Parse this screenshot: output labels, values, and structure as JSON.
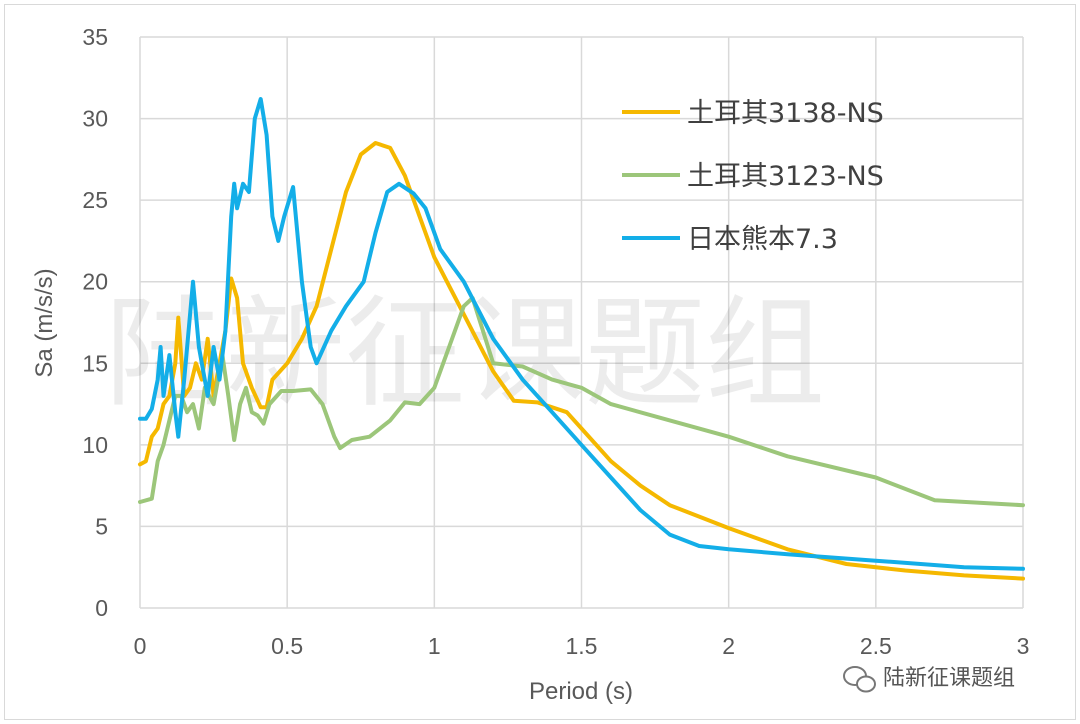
{
  "chart_data": {
    "type": "line",
    "title": "",
    "xlabel": "Period (s)",
    "ylabel": "Sa (m/s/s)",
    "xlim": [
      0,
      3
    ],
    "ylim": [
      0,
      35
    ],
    "xticks": [
      "0",
      "0.5",
      "1",
      "1.5",
      "2",
      "2.5",
      "3"
    ],
    "yticks": [
      "0",
      "5",
      "10",
      "15",
      "20",
      "25",
      "30",
      "35"
    ],
    "grid": true,
    "legend_position": "top-right",
    "series": [
      {
        "name": "土耳其3138-NS",
        "color": "#f5b800",
        "x": [
          0,
          0.02,
          0.04,
          0.06,
          0.08,
          0.1,
          0.12,
          0.13,
          0.15,
          0.17,
          0.19,
          0.21,
          0.23,
          0.25,
          0.27,
          0.29,
          0.31,
          0.33,
          0.35,
          0.38,
          0.41,
          0.43,
          0.45,
          0.5,
          0.55,
          0.6,
          0.65,
          0.7,
          0.75,
          0.8,
          0.85,
          0.9,
          0.95,
          1.0,
          1.1,
          1.2,
          1.27,
          1.35,
          1.45,
          1.5,
          1.6,
          1.7,
          1.8,
          1.9,
          2.0,
          2.2,
          2.4,
          2.6,
          2.8,
          3.0
        ],
        "y": [
          8.8,
          9,
          10.5,
          11,
          12.5,
          13,
          15,
          17.8,
          13,
          13.5,
          15,
          14,
          16.5,
          13,
          15,
          17,
          20.2,
          19,
          15,
          13.5,
          12.3,
          12.3,
          14,
          15,
          16.5,
          18.5,
          22,
          25.5,
          27.8,
          28.5,
          28.2,
          26.5,
          24,
          21.5,
          18,
          14.5,
          12.7,
          12.6,
          12,
          11,
          9,
          7.5,
          6.3,
          5.6,
          4.9,
          3.6,
          2.7,
          2.3,
          2.0,
          1.8
        ]
      },
      {
        "name": "土耳其3123-NS",
        "color": "#9cc67a",
        "x": [
          0,
          0.04,
          0.06,
          0.08,
          0.1,
          0.12,
          0.14,
          0.16,
          0.18,
          0.2,
          0.22,
          0.25,
          0.28,
          0.3,
          0.32,
          0.34,
          0.36,
          0.38,
          0.4,
          0.42,
          0.44,
          0.48,
          0.52,
          0.58,
          0.62,
          0.66,
          0.68,
          0.72,
          0.78,
          0.85,
          0.9,
          0.95,
          1.0,
          1.05,
          1.1,
          1.13,
          1.2,
          1.3,
          1.4,
          1.5,
          1.6,
          1.8,
          2.0,
          2.2,
          2.5,
          2.7,
          3.0
        ],
        "y": [
          6.5,
          6.7,
          9,
          10,
          11.5,
          13,
          13,
          12,
          12.5,
          11,
          13.5,
          12.5,
          15.5,
          13,
          10.3,
          12.5,
          13.5,
          12,
          11.8,
          11.3,
          12.5,
          13.3,
          13.3,
          13.4,
          12.5,
          10.5,
          9.8,
          10.3,
          10.5,
          11.5,
          12.6,
          12.5,
          13.5,
          16,
          18.5,
          19,
          15,
          14.8,
          14,
          13.5,
          12.5,
          11.5,
          10.5,
          9.3,
          8,
          6.6,
          6.3
        ]
      },
      {
        "name": "日本熊本7.3",
        "color": "#13aee8",
        "x": [
          0,
          0.02,
          0.04,
          0.06,
          0.07,
          0.08,
          0.1,
          0.12,
          0.13,
          0.15,
          0.18,
          0.2,
          0.23,
          0.25,
          0.27,
          0.29,
          0.31,
          0.32,
          0.33,
          0.35,
          0.37,
          0.39,
          0.41,
          0.43,
          0.45,
          0.47,
          0.49,
          0.52,
          0.55,
          0.58,
          0.6,
          0.65,
          0.7,
          0.76,
          0.8,
          0.84,
          0.88,
          0.93,
          0.97,
          1.02,
          1.1,
          1.2,
          1.3,
          1.4,
          1.5,
          1.6,
          1.7,
          1.8,
          1.9,
          2.0,
          2.2,
          2.5,
          2.8,
          3.0
        ],
        "y": [
          11.6,
          11.6,
          12.2,
          14,
          16,
          13,
          15.5,
          12,
          10.5,
          14,
          20,
          16,
          13,
          16,
          14,
          17,
          24,
          26,
          24.5,
          26,
          25.5,
          30,
          31.2,
          29,
          24,
          22.5,
          24,
          25.8,
          20,
          16,
          15,
          17,
          18.5,
          20,
          23,
          25.5,
          26,
          25.4,
          24.5,
          22,
          20,
          16.5,
          14,
          12,
          10,
          8,
          6,
          4.5,
          3.8,
          3.6,
          3.3,
          2.9,
          2.5,
          2.4
        ]
      }
    ]
  },
  "watermark": "陆新征课题组",
  "wechat_badge": "陆新征课题组"
}
